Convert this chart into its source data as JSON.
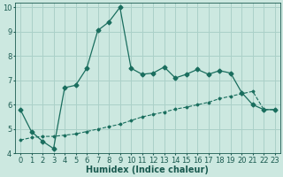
{
  "xlabel": "Humidex (Indice chaleur)",
  "background_color": "#cce8e0",
  "line_color": "#1a6e5e",
  "xlim": [
    -0.5,
    23.5
  ],
  "ylim": [
    4,
    10.2
  ],
  "yticks": [
    4,
    5,
    6,
    7,
    8,
    9,
    10
  ],
  "xticks": [
    0,
    1,
    2,
    3,
    4,
    5,
    6,
    7,
    8,
    9,
    10,
    11,
    12,
    13,
    14,
    15,
    16,
    17,
    18,
    19,
    20,
    21,
    22,
    23
  ],
  "curve_x": [
    0,
    1,
    2,
    3,
    4,
    5,
    6,
    7,
    8,
    9,
    10,
    11,
    12,
    13,
    14,
    15,
    16,
    17,
    18,
    19,
    20,
    21,
    22,
    23
  ],
  "curve_y": [
    5.8,
    4.9,
    4.5,
    4.2,
    6.7,
    6.8,
    7.5,
    9.05,
    9.4,
    10.0,
    7.5,
    7.25,
    7.3,
    7.55,
    7.1,
    7.25,
    7.45,
    7.25,
    7.4,
    7.3,
    6.5,
    6.0,
    5.8,
    5.8
  ],
  "trend_x": [
    0,
    1,
    2,
    3,
    4,
    5,
    6,
    7,
    8,
    9,
    10,
    11,
    12,
    13,
    14,
    15,
    16,
    17,
    18,
    19,
    20,
    21,
    22,
    23
  ],
  "trend_y": [
    4.55,
    4.65,
    4.7,
    4.7,
    4.75,
    4.8,
    4.9,
    5.0,
    5.1,
    5.2,
    5.35,
    5.5,
    5.6,
    5.7,
    5.82,
    5.9,
    6.0,
    6.1,
    6.25,
    6.35,
    6.45,
    6.55,
    5.8,
    5.8
  ],
  "marker": "D",
  "marker_size": 2.5,
  "grid_color": "#aad0c8",
  "font_color": "#1a5a50",
  "tick_fontsize": 6,
  "label_fontsize": 7
}
